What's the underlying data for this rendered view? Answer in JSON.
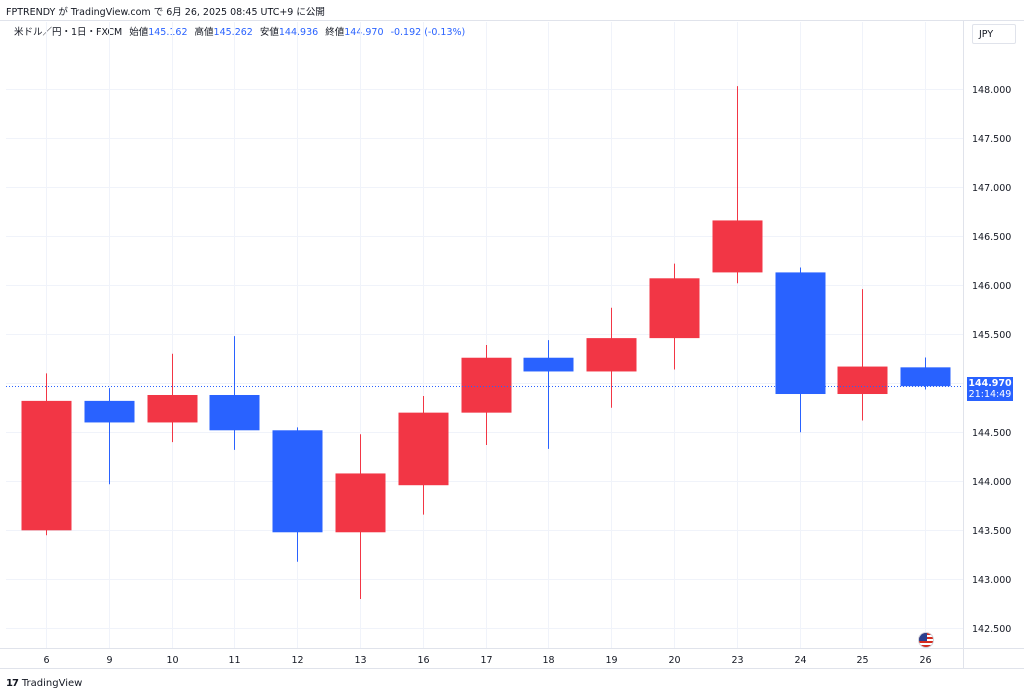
{
  "header": {
    "publish_text": "FPTRENDY が TradingView.com で 6月 26, 2025 08:45 UTC+9 に公開"
  },
  "legend": {
    "symbol": "米ドル／円・1日・FXCM",
    "open_label": "始値",
    "open_value": "145.162",
    "high_label": "高値",
    "high_value": "145.262",
    "low_label": "安値",
    "low_value": "144.936",
    "close_label": "終値",
    "close_value": "144.970",
    "change": "-0.192 (-0.13%)"
  },
  "currency_button": "JPY",
  "price_tag": {
    "price": "144.970",
    "countdown": "21:14:49"
  },
  "footer": {
    "brand": "TradingView",
    "logo": "17"
  },
  "colors": {
    "up": "#f23645",
    "down": "#2962ff",
    "grid": "#f0f3fa",
    "text": "#131722",
    "price_line": "#2962ff"
  },
  "chart_data": {
    "type": "candlestick",
    "title": "米ドル／円・1日・FXCM",
    "categories": [
      "6",
      "9",
      "10",
      "11",
      "12",
      "13",
      "16",
      "17",
      "18",
      "19",
      "20",
      "23",
      "24",
      "25",
      "26"
    ],
    "ohlc": [
      {
        "x": "6",
        "open": 143.5,
        "high": 145.1,
        "low": 143.45,
        "close": 144.82
      },
      {
        "x": "9",
        "open": 144.82,
        "high": 144.95,
        "low": 143.97,
        "close": 144.6
      },
      {
        "x": "10",
        "open": 144.6,
        "high": 145.3,
        "low": 144.4,
        "close": 144.88
      },
      {
        "x": "11",
        "open": 144.88,
        "high": 145.48,
        "low": 144.32,
        "close": 144.52
      },
      {
        "x": "12",
        "open": 144.52,
        "high": 144.55,
        "low": 143.18,
        "close": 143.48
      },
      {
        "x": "13",
        "open": 143.48,
        "high": 144.48,
        "low": 142.8,
        "close": 144.08
      },
      {
        "x": "16",
        "open": 143.96,
        "high": 144.87,
        "low": 143.66,
        "close": 144.7
      },
      {
        "x": "17",
        "open": 144.7,
        "high": 145.39,
        "low": 144.37,
        "close": 145.26
      },
      {
        "x": "18",
        "open": 145.26,
        "high": 145.44,
        "low": 144.33,
        "close": 145.12
      },
      {
        "x": "19",
        "open": 145.12,
        "high": 145.77,
        "low": 144.75,
        "close": 145.46
      },
      {
        "x": "20",
        "open": 145.46,
        "high": 146.22,
        "low": 145.14,
        "close": 146.07
      },
      {
        "x": "23",
        "open": 146.13,
        "high": 148.03,
        "low": 146.02,
        "close": 146.66
      },
      {
        "x": "24",
        "open": 146.13,
        "high": 146.18,
        "low": 144.5,
        "close": 144.89
      },
      {
        "x": "25",
        "open": 144.89,
        "high": 145.96,
        "low": 144.62,
        "close": 145.17
      },
      {
        "x": "26",
        "open": 145.162,
        "high": 145.262,
        "low": 144.936,
        "close": 144.97
      }
    ],
    "y_ticks": [
      "142.500",
      "143.000",
      "143.500",
      "144.000",
      "144.500",
      "145.000",
      "145.500",
      "146.000",
      "146.500",
      "147.000",
      "147.500",
      "148.000"
    ],
    "y_tick_values": [
      142.5,
      143.0,
      143.5,
      144.0,
      144.5,
      145.0,
      145.5,
      146.0,
      146.5,
      147.0,
      147.5,
      148.0
    ],
    "ylim": [
      142.3,
      148.5
    ],
    "last_price": 144.97,
    "grid": true
  }
}
